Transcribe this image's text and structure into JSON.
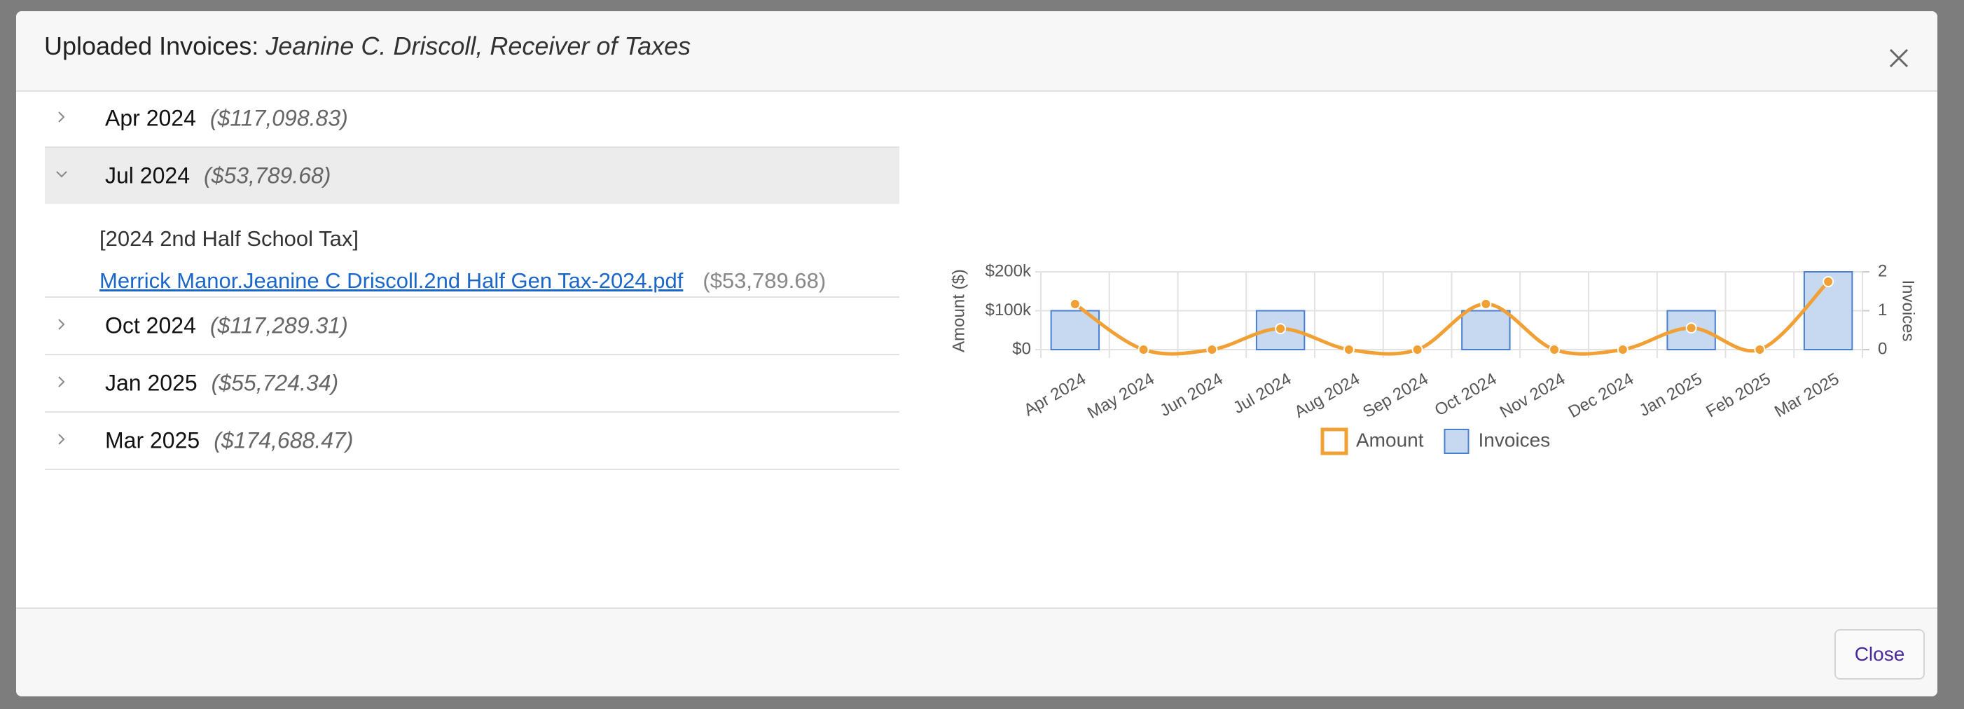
{
  "modal": {
    "title_prefix": "Uploaded Invoices:",
    "title_name": "Jeanine C. Driscoll, Receiver of Taxes",
    "close_button": "Close"
  },
  "months": [
    {
      "label": "Apr 2024",
      "total": "($117,098.83)"
    },
    {
      "label": "Jul 2024",
      "total": "($53,789.68)",
      "expanded": true,
      "group": "[2024 2nd Half School Tax]",
      "files": [
        {
          "name": "Merrick Manor.Jeanine C Driscoll.2nd Half Gen Tax-2024.pdf",
          "amount": "($53,789.68)"
        }
      ]
    },
    {
      "label": "Oct 2024",
      "total": "($117,289.31)"
    },
    {
      "label": "Jan 2025",
      "total": "($55,724.34)"
    },
    {
      "label": "Mar 2025",
      "total": "($174,688.47)"
    }
  ],
  "chart_data": {
    "type": "combo",
    "categories": [
      "Apr 2024",
      "May 2024",
      "Jun 2024",
      "Jul 2024",
      "Aug 2024",
      "Sep 2024",
      "Oct 2024",
      "Nov 2024",
      "Dec 2024",
      "Jan 2025",
      "Feb 2025",
      "Mar 2025"
    ],
    "y_label": "Amount ($)",
    "y2_label": "Invoices",
    "ylim": [
      0,
      200000
    ],
    "yticks": [
      {
        "value": 0,
        "label": "$0"
      },
      {
        "value": 100000,
        "label": "$100k"
      },
      {
        "value": 200000,
        "label": "$200k"
      }
    ],
    "y2lim": [
      0,
      2
    ],
    "y2ticks": [
      0,
      1,
      2
    ],
    "grid": true,
    "legend": "bottom",
    "series": [
      {
        "name": "Amount",
        "type": "line",
        "color": "#f0a035",
        "values": [
          117098.83,
          0,
          0,
          53789.68,
          0,
          0,
          117289.31,
          0,
          0,
          55724.34,
          0,
          174688.47
        ]
      },
      {
        "name": "Invoices",
        "type": "bar",
        "axis": "y2",
        "color": "#4a7fd0",
        "values": [
          1,
          0,
          0,
          1,
          0,
          0,
          1,
          0,
          0,
          1,
          0,
          2
        ]
      }
    ]
  }
}
